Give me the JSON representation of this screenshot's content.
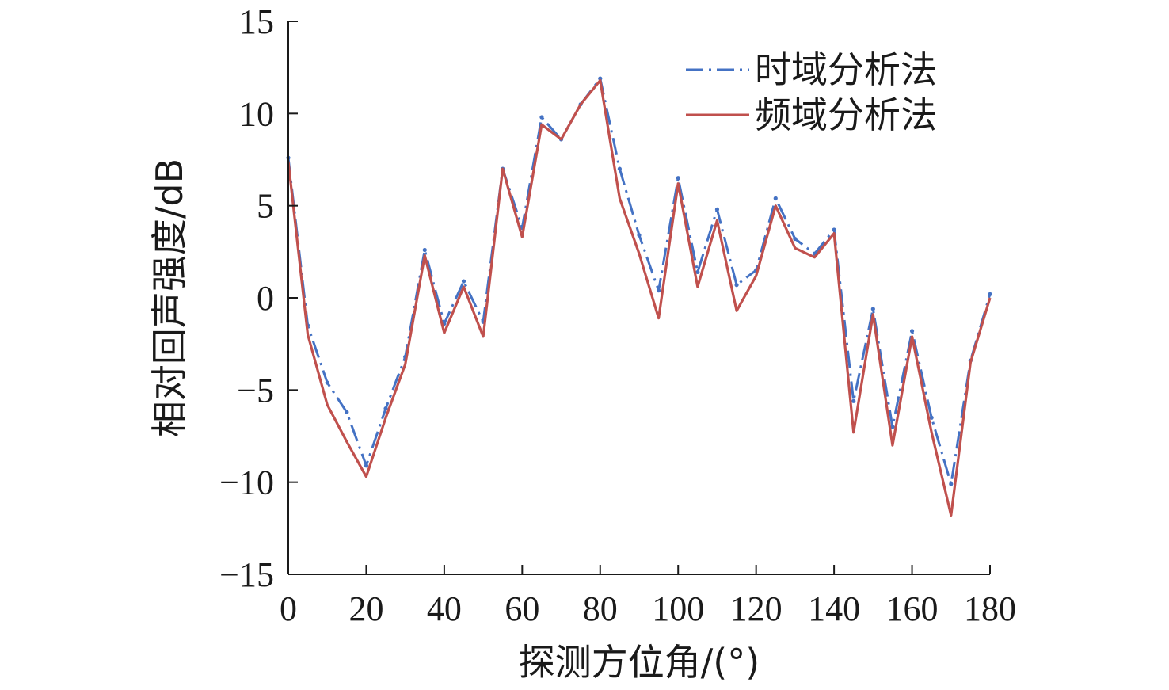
{
  "chart_data": {
    "type": "line",
    "xlabel": "探测方位角/(°)",
    "ylabel": "相对回声强度/dB",
    "xlim": [
      0,
      180
    ],
    "ylim": [
      -15,
      15
    ],
    "xticks": [
      0,
      20,
      40,
      60,
      80,
      100,
      120,
      140,
      160,
      180
    ],
    "yticks": [
      -15,
      -10,
      -5,
      0,
      5,
      10,
      15
    ],
    "ytick_labels": [
      "−15",
      "−10",
      "−5",
      "0",
      "5",
      "10",
      "15"
    ],
    "grid": false,
    "legend_position": "top-right",
    "x": [
      0,
      5,
      10,
      15,
      20,
      25,
      30,
      35,
      40,
      45,
      50,
      55,
      60,
      65,
      70,
      75,
      80,
      85,
      90,
      95,
      100,
      105,
      110,
      115,
      120,
      125,
      130,
      135,
      140,
      145,
      150,
      155,
      160,
      165,
      170,
      175,
      180
    ],
    "series": [
      {
        "name": "时域分析法",
        "color": "#4472c4",
        "dash": "dashdot",
        "values": [
          7.6,
          -1.5,
          -4.6,
          -6.2,
          -9.1,
          -6.0,
          -3.2,
          2.6,
          -1.4,
          0.9,
          -1.3,
          7.0,
          3.8,
          9.8,
          8.6,
          10.5,
          11.9,
          7.0,
          3.4,
          0.4,
          6.5,
          1.4,
          4.8,
          0.7,
          1.5,
          5.4,
          3.2,
          2.4,
          3.7,
          -5.6,
          -0.6,
          -7.0,
          -1.8,
          -6.5,
          -10.1,
          -3.4,
          0.2
        ]
      },
      {
        "name": "频域分析法",
        "color": "#c0504d",
        "dash": "solid",
        "values": [
          7.4,
          -2.0,
          -5.8,
          -7.8,
          -9.7,
          -6.5,
          -3.6,
          2.3,
          -1.9,
          0.6,
          -2.1,
          7.0,
          3.3,
          9.4,
          8.6,
          10.5,
          11.8,
          5.4,
          2.4,
          -1.1,
          6.2,
          0.6,
          4.2,
          -0.7,
          1.2,
          5.0,
          2.7,
          2.2,
          3.5,
          -7.3,
          -0.9,
          -8.0,
          -2.1,
          -7.3,
          -11.8,
          -3.5,
          0.0
        ]
      }
    ]
  }
}
